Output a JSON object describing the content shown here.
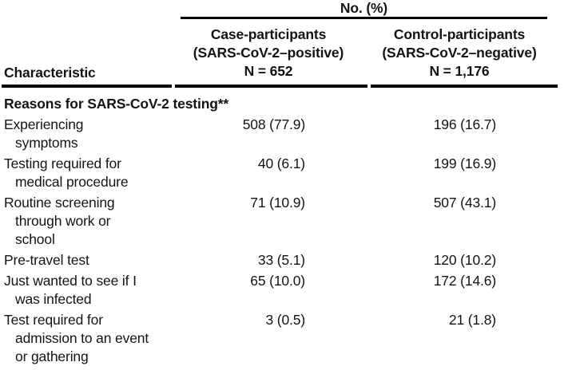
{
  "header": {
    "group_label": "No. (%)",
    "characteristic_label": "Characteristic",
    "columns": [
      {
        "line1": "Case-participants",
        "line2": "(SARS-CoV-2–positive)",
        "line3": "N = 652"
      },
      {
        "line1": "Control-participants",
        "line2": "(SARS-CoV-2–negative)",
        "line3": "N = 1,176"
      }
    ]
  },
  "section": {
    "title": "Reasons for SARS-CoV-2 testing**"
  },
  "rows": [
    {
      "label_lines": [
        "Experiencing",
        "symptoms"
      ],
      "case": "508 (77.9)",
      "control": "196 (16.7)"
    },
    {
      "label_lines": [
        "Testing required for",
        "medical procedure"
      ],
      "case": "40 (6.1)",
      "control": "199 (16.9)"
    },
    {
      "label_lines": [
        "Routine screening",
        "through work or",
        "school"
      ],
      "case": "71 (10.9)",
      "control": "507 (43.1)"
    },
    {
      "label_lines": [
        "Pre-travel test"
      ],
      "case": "33 (5.1)",
      "control": "120 (10.2)"
    },
    {
      "label_lines": [
        "Just wanted to see if I",
        "was infected"
      ],
      "case": "65 (10.0)",
      "control": "172 (14.6)"
    },
    {
      "label_lines": [
        "Test required for",
        "admission to an event",
        "or gathering"
      ],
      "case": "3 (0.5)",
      "control": "21 (1.8)"
    }
  ],
  "colors": {
    "text": "#141414",
    "rule": "#000000",
    "background": "#ffffff"
  }
}
